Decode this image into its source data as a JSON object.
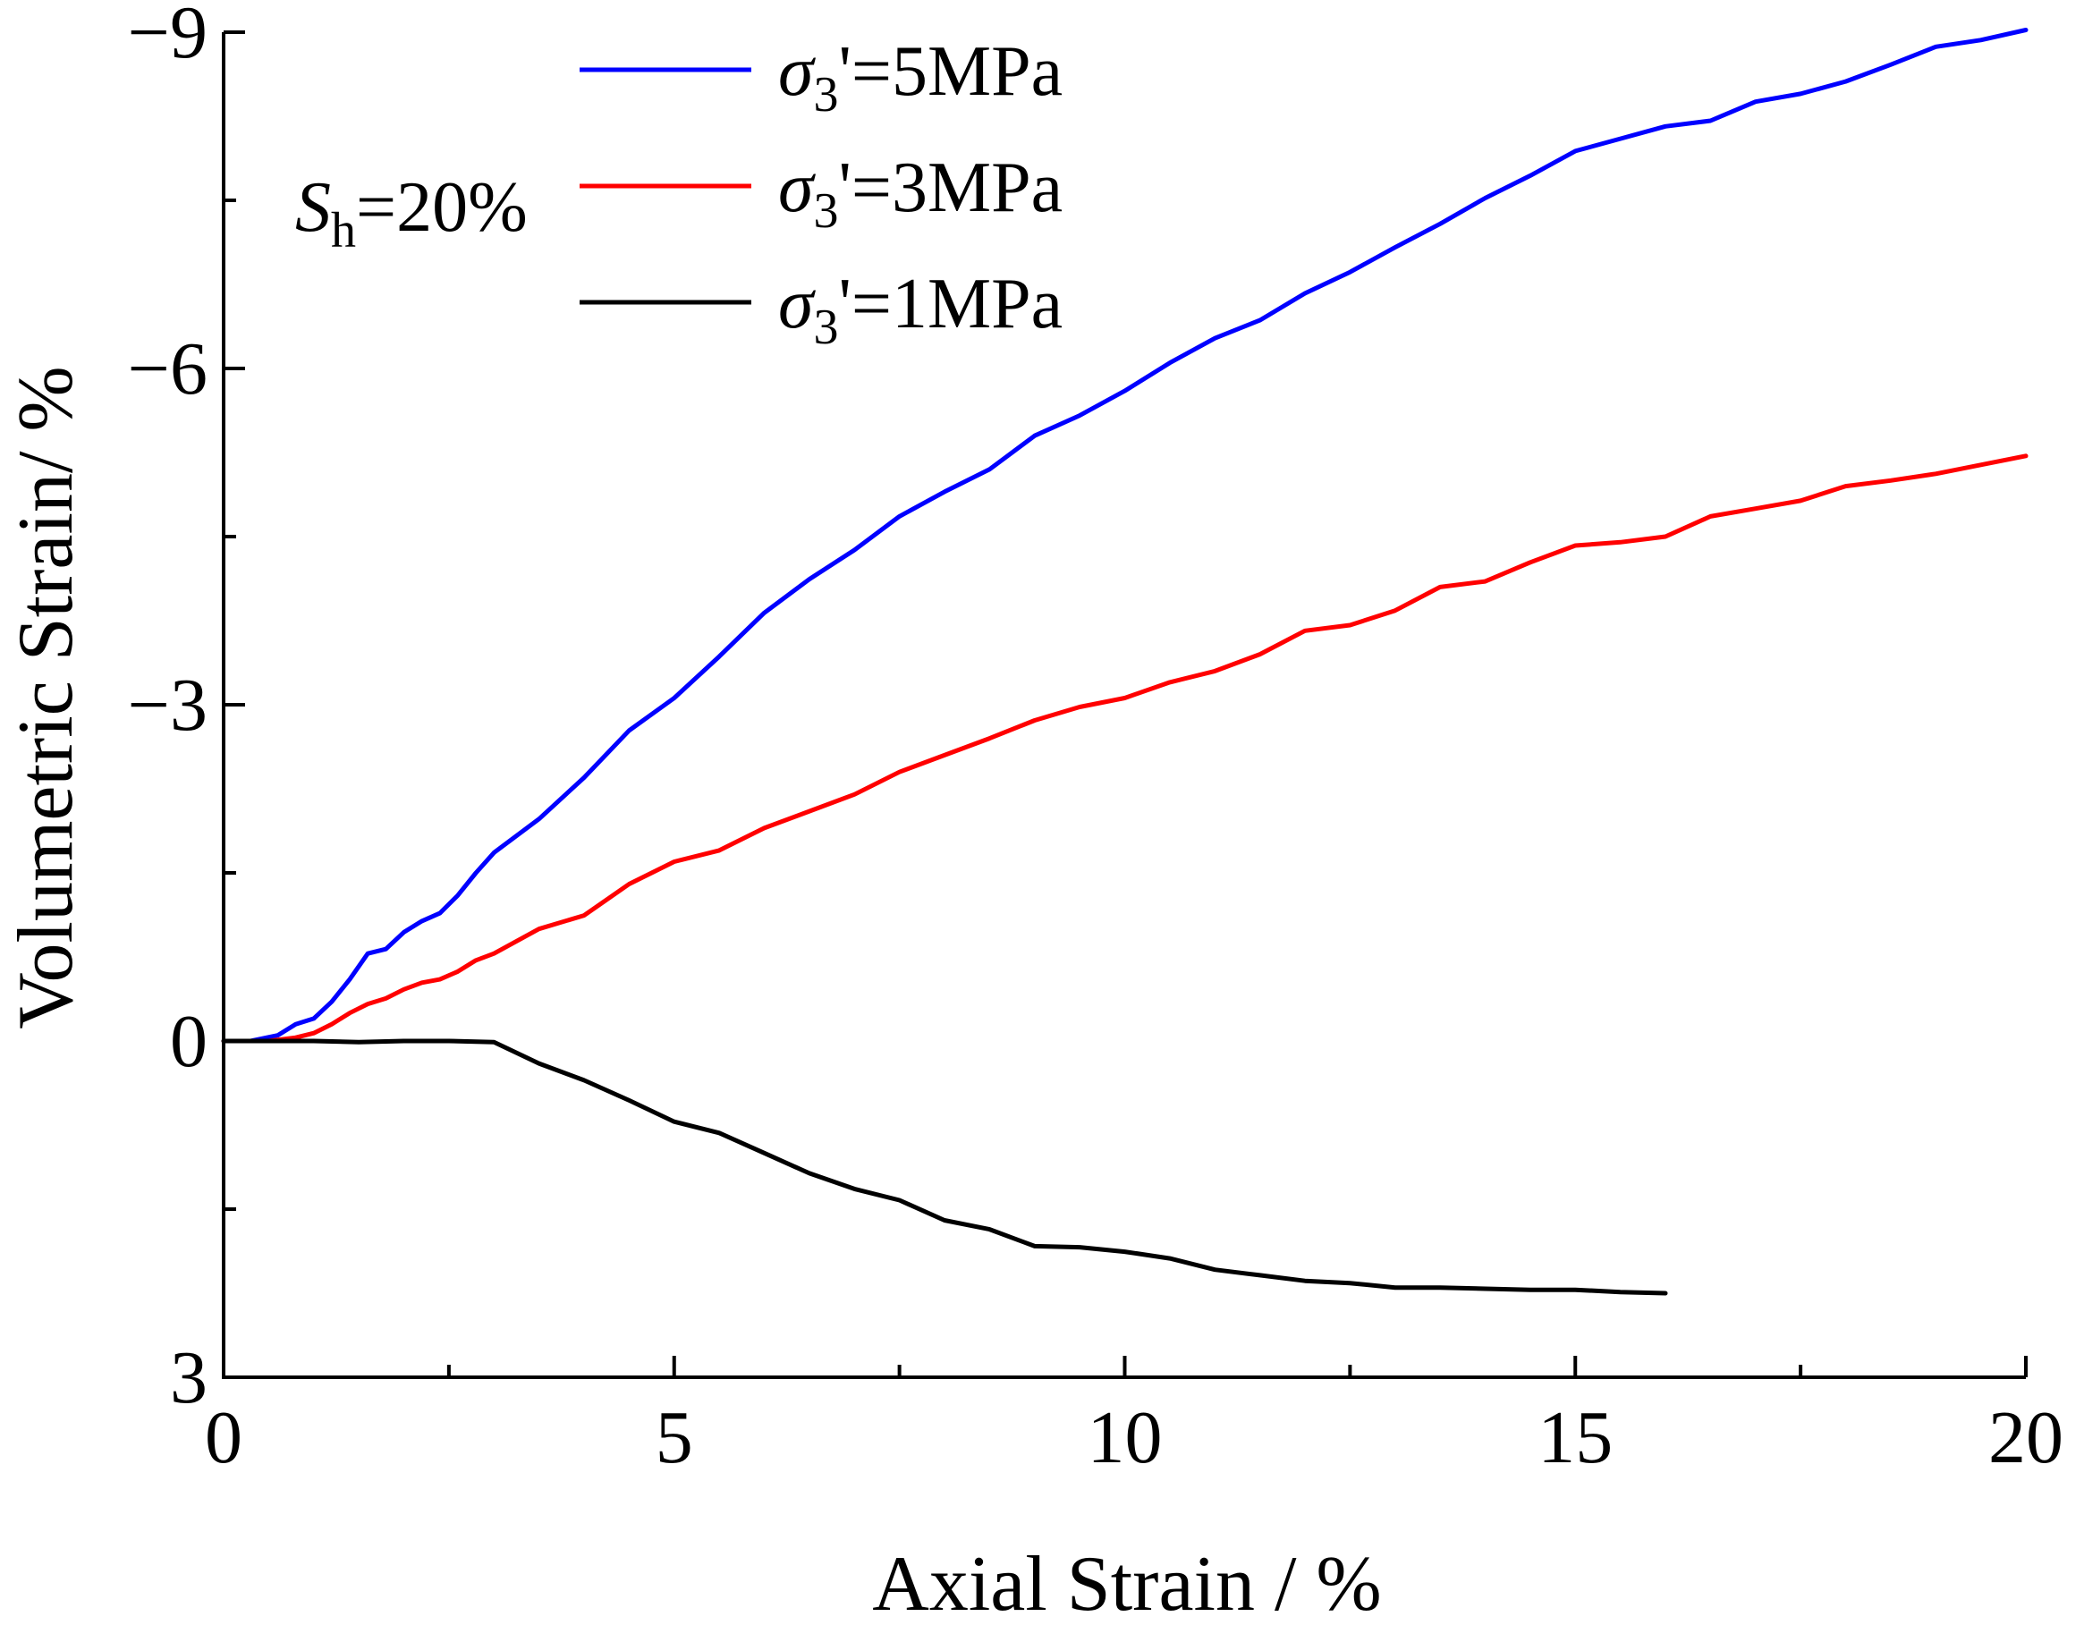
{
  "chart_data": {
    "type": "line",
    "title": "",
    "xlabel": "Axial Strain / %",
    "ylabel": "Volumetric Strain/ %",
    "xlim": [
      0,
      20
    ],
    "ylim": [
      3,
      -9
    ],
    "x_ticks": [
      "0",
      "5",
      "10",
      "15",
      "20"
    ],
    "y_ticks": [
      "−9",
      "−6",
      "−3",
      "0",
      "3"
    ],
    "grid": false,
    "legend_position": "top-center",
    "annotation": {
      "symbol": "S",
      "subscript": "h",
      "text": "=20%"
    },
    "series": [
      {
        "name": "σ3'=5MPa",
        "symbol": "σ",
        "subscript": "3",
        "label_rest": "'=5MPa",
        "color": "#0000ff",
        "x": [
          0,
          0.3,
          0.6,
          0.8,
          1.0,
          1.2,
          1.4,
          1.6,
          1.8,
          2.0,
          2.2,
          2.4,
          2.6,
          2.8,
          3.0,
          3.5,
          4.0,
          4.5,
          5.0,
          5.5,
          6.0,
          6.5,
          7.0,
          7.5,
          8.0,
          8.5,
          9.0,
          9.5,
          10.0,
          10.5,
          11.0,
          11.5,
          12.0,
          12.5,
          13.0,
          13.5,
          14.0,
          14.5,
          15.0,
          15.5,
          16.0,
          16.5,
          17.0,
          17.5,
          18.0,
          18.5,
          19.0,
          19.5,
          20.0
        ],
        "values": [
          0,
          0,
          -0.05,
          -0.15,
          -0.2,
          -0.35,
          -0.55,
          -0.78,
          -0.82,
          -0.97,
          -1.07,
          -1.14,
          -1.3,
          -1.5,
          -1.68,
          -1.98,
          -2.35,
          -2.77,
          -3.06,
          -3.43,
          -3.82,
          -4.12,
          -4.38,
          -4.68,
          -4.9,
          -5.1,
          -5.4,
          -5.58,
          -5.8,
          -6.05,
          -6.27,
          -6.43,
          -6.67,
          -6.86,
          -7.08,
          -7.29,
          -7.52,
          -7.72,
          -7.94,
          -8.05,
          -8.16,
          -8.21,
          -8.38,
          -8.45,
          -8.56,
          -8.71,
          -8.87,
          -8.93,
          -9.02
        ]
      },
      {
        "name": "σ3'=3MPa",
        "symbol": "σ",
        "subscript": "3",
        "label_rest": "'=3MPa",
        "color": "#ff0000",
        "x": [
          0,
          0.5,
          0.8,
          1.0,
          1.2,
          1.4,
          1.6,
          1.8,
          2.0,
          2.2,
          2.4,
          2.6,
          2.8,
          3.0,
          3.5,
          4.0,
          4.5,
          5.0,
          5.5,
          6.0,
          6.5,
          7.0,
          7.5,
          8.0,
          8.5,
          9.0,
          9.5,
          10.0,
          10.5,
          11.0,
          11.5,
          12.0,
          12.5,
          13.0,
          13.5,
          14.0,
          14.5,
          15.0,
          15.5,
          16.0,
          16.5,
          17.0,
          17.5,
          18.0,
          18.5,
          19.0,
          19.5,
          20.0
        ],
        "values": [
          0,
          0,
          -0.03,
          -0.07,
          -0.15,
          -0.25,
          -0.33,
          -0.38,
          -0.46,
          -0.52,
          -0.55,
          -0.62,
          -0.72,
          -0.78,
          -1.0,
          -1.12,
          -1.4,
          -1.6,
          -1.7,
          -1.9,
          -2.05,
          -2.2,
          -2.4,
          -2.55,
          -2.7,
          -2.86,
          -2.98,
          -3.06,
          -3.2,
          -3.3,
          -3.45,
          -3.66,
          -3.71,
          -3.84,
          -4.05,
          -4.1,
          -4.27,
          -4.42,
          -4.45,
          -4.5,
          -4.68,
          -4.75,
          -4.82,
          -4.95,
          -5.0,
          -5.06,
          -5.14,
          -5.22
        ]
      },
      {
        "name": "σ3'=1MPa",
        "symbol": "σ",
        "subscript": "3",
        "label_rest": "'=1MPa",
        "color": "#000000",
        "x": [
          0,
          0.5,
          1.0,
          1.5,
          2.0,
          2.5,
          3.0,
          3.5,
          4.0,
          4.5,
          5.0,
          5.5,
          6.0,
          6.5,
          7.0,
          7.5,
          8.0,
          8.5,
          9.0,
          9.5,
          10.0,
          10.5,
          11.0,
          11.5,
          12.0,
          12.5,
          13.0,
          13.5,
          14.0,
          14.5,
          15.0,
          15.5,
          16.0
        ],
        "values": [
          0,
          0,
          0,
          0.01,
          0,
          0,
          0.01,
          0.2,
          0.35,
          0.53,
          0.72,
          0.82,
          1.0,
          1.18,
          1.32,
          1.42,
          1.6,
          1.68,
          1.83,
          1.84,
          1.88,
          1.94,
          2.04,
          2.09,
          2.14,
          2.16,
          2.2,
          2.2,
          2.21,
          2.22,
          2.22,
          2.24,
          2.25
        ]
      }
    ]
  }
}
